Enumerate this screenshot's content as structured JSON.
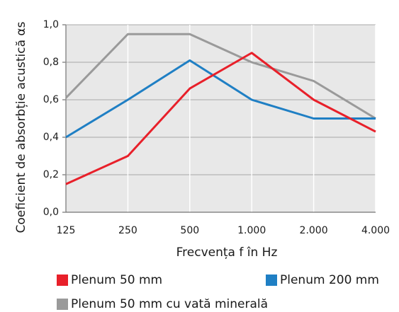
{
  "chart_data": {
    "type": "line",
    "ylabel": "Coeficient de absorbție acustică αs",
    "xlabel": "Frecvența f în Hz",
    "categories": [
      "125",
      "250",
      "500",
      "1.000",
      "2.000",
      "4.000"
    ],
    "series": [
      {
        "name": "Plenum 50 mm",
        "color": "#e8202a",
        "values": [
          0.15,
          0.3,
          0.66,
          0.85,
          0.6,
          0.43
        ]
      },
      {
        "name": "Plenum 200 mm",
        "color": "#1f7fc4",
        "values": [
          0.4,
          0.6,
          0.81,
          0.6,
          0.5,
          0.5
        ]
      },
      {
        "name": "Plenum 50 mm cu vată minerală",
        "color": "#9a9a9a",
        "values": [
          0.61,
          0.95,
          0.95,
          0.8,
          0.7,
          0.5
        ]
      }
    ],
    "ylim": [
      0,
      1
    ],
    "yticks": [
      {
        "value": 0,
        "label": "0,0"
      },
      {
        "value": 0.2,
        "label": "0,2"
      },
      {
        "value": 0.4,
        "label": "0,4"
      },
      {
        "value": 0.6,
        "label": "0,6"
      },
      {
        "value": 0.8,
        "label": "0,8"
      },
      {
        "value": 1,
        "label": "1,0"
      }
    ],
    "grid": true
  }
}
